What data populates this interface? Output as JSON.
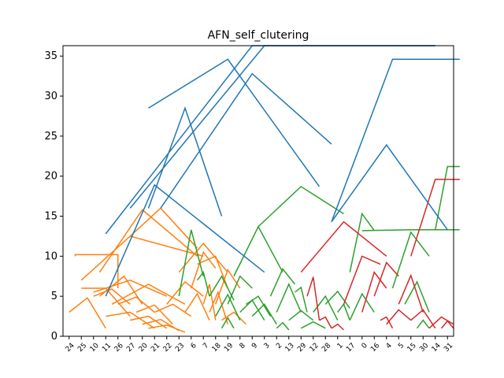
{
  "chart_data": {
    "type": "dendrogram",
    "title": "AFN_self_clutering",
    "xlabel": "",
    "ylabel": "",
    "ylim": [
      0,
      36.3
    ],
    "yticks": [
      0,
      5,
      10,
      15,
      20,
      25,
      30,
      35
    ],
    "leaves": [
      "24",
      "25",
      "10",
      "11",
      "26",
      "27",
      "20",
      "21",
      "22",
      "23",
      "6",
      "7",
      "18",
      "19",
      "8",
      "9",
      "3",
      "2",
      "13",
      "29",
      "12",
      "28",
      "1",
      "17",
      "0",
      "16",
      "4",
      "5",
      "15",
      "30",
      "14",
      "31"
    ],
    "grid": false,
    "colors": {
      "orange": "#ff7f0e",
      "green": "#2ca02c",
      "red": "#d62728",
      "blue": "#1f77b4"
    },
    "links": [
      {
        "x": [
          0.0,
          1.5,
          1.5,
          3.0
        ],
        "y": [
          3.0,
          4.8,
          4.8,
          1.0
        ],
        "color": "orange"
      },
      {
        "x": [
          0.5,
          0.5,
          4.0,
          4.0
        ],
        "y": [
          10.0,
          10.2,
          10.2,
          6.0
        ],
        "color": "orange"
      },
      {
        "x": [
          1.0,
          3.0,
          3.0,
          5.0
        ],
        "y": [
          6.0,
          6.0,
          6.0,
          2.5
        ],
        "color": "orange"
      },
      {
        "x": [
          2.0,
          3.5,
          3.5,
          5.0
        ],
        "y": [
          5.0,
          5.9,
          5.9,
          4.0
        ],
        "color": "orange"
      },
      {
        "x": [
          2.5,
          4.5,
          4.5,
          6.0
        ],
        "y": [
          5.0,
          7.5,
          7.5,
          4.0
        ],
        "color": "orange"
      },
      {
        "x": [
          3.0,
          5.0,
          5.0,
          7.0
        ],
        "y": [
          2.5,
          3.0,
          3.0,
          1.0
        ],
        "color": "orange"
      },
      {
        "x": [
          4.0,
          5.5,
          5.5,
          7.0
        ],
        "y": [
          4.0,
          4.9,
          4.9,
          3.0
        ],
        "color": "orange"
      },
      {
        "x": [
          5.0,
          6.5,
          6.5,
          8.0
        ],
        "y": [
          2.0,
          2.5,
          2.5,
          1.0
        ],
        "color": "orange"
      },
      {
        "x": [
          5.5,
          7.0,
          7.0,
          8.5
        ],
        "y": [
          3.0,
          3.9,
          3.9,
          1.5
        ],
        "color": "orange"
      },
      {
        "x": [
          6.0,
          7.5,
          7.5,
          9.0
        ],
        "y": [
          1.5,
          2.1,
          2.1,
          0.7
        ],
        "color": "orange"
      },
      {
        "x": [
          6.5,
          8.0,
          8.0,
          9.5
        ],
        "y": [
          1.0,
          1.4,
          1.4,
          0.5
        ],
        "color": "orange"
      },
      {
        "x": [
          7.0,
          8.5,
          8.5,
          10.0
        ],
        "y": [
          3.0,
          4.0,
          4.0,
          2.5
        ],
        "color": "orange"
      },
      {
        "x": [
          3.5,
          6.5,
          6.5,
          9.5
        ],
        "y": [
          4.0,
          6.5,
          6.5,
          4.0
        ],
        "color": "orange"
      },
      {
        "x": [
          2.0,
          5.0,
          5.0,
          8.0
        ],
        "y": [
          5.5,
          7.0,
          7.0,
          5.0
        ],
        "color": "orange"
      },
      {
        "x": [
          8.0,
          9.5,
          9.5,
          11.0
        ],
        "y": [
          4.0,
          6.8,
          6.8,
          5.0
        ],
        "color": "orange"
      },
      {
        "x": [
          9.5,
          10.5,
          10.5,
          11.5
        ],
        "y": [
          3.0,
          5.3,
          5.3,
          2.0
        ],
        "color": "orange"
      },
      {
        "x": [
          10.0,
          11.0,
          11.0,
          12.0
        ],
        "y": [
          6.0,
          10.5,
          10.5,
          8.5
        ],
        "color": "orange"
      },
      {
        "x": [
          11.0,
          11.5,
          11.5,
          12.0
        ],
        "y": [
          4.0,
          6.5,
          6.5,
          2.0
        ],
        "color": "orange"
      },
      {
        "x": [
          10.5,
          12.0,
          12.0,
          13.0
        ],
        "y": [
          9.0,
          10.0,
          10.0,
          6.0
        ],
        "color": "orange"
      },
      {
        "x": [
          11.5,
          12.2,
          12.2,
          13.0
        ],
        "y": [
          3.0,
          5.5,
          5.5,
          1.5
        ],
        "color": "orange"
      },
      {
        "x": [
          9.0,
          11.0,
          11.0,
          13.0
        ],
        "y": [
          8.0,
          11.6,
          11.6,
          8.0
        ],
        "color": "orange"
      },
      {
        "x": [
          12.0,
          13.0,
          13.0,
          14.0
        ],
        "y": [
          4.0,
          8.3,
          8.3,
          6.0
        ],
        "color": "orange"
      },
      {
        "x": [
          12.5,
          13.5,
          13.5,
          14.5
        ],
        "y": [
          2.0,
          3.0,
          3.0,
          1.5
        ],
        "color": "orange"
      },
      {
        "x": [
          1.0,
          5.0,
          5.0,
          11.0
        ],
        "y": [
          7.0,
          12.5,
          12.5,
          10.0
        ],
        "color": "orange"
      },
      {
        "x": [
          2.5,
          6.0,
          6.0,
          10.5
        ],
        "y": [
          8.0,
          15.8,
          15.8,
          10.0
        ],
        "color": "orange"
      },
      {
        "x": [
          5.0,
          7.5,
          7.5,
          10.5
        ],
        "y": [
          12.5,
          16.0,
          16.0,
          11.0
        ],
        "color": "orange"
      },
      {
        "x": [
          9.0,
          10.0,
          10.0,
          11.0
        ],
        "y": [
          5.0,
          13.3,
          13.3,
          7.5
        ],
        "color": "green"
      },
      {
        "x": [
          10.5,
          11.0,
          11.0,
          11.5
        ],
        "y": [
          7.0,
          8.0,
          8.0,
          5.0
        ],
        "color": "green"
      },
      {
        "x": [
          11.5,
          12.5,
          12.5,
          13.5
        ],
        "y": [
          5.0,
          7.5,
          7.5,
          4.5
        ],
        "color": "green"
      },
      {
        "x": [
          12.0,
          13.0,
          13.0,
          14.0
        ],
        "y": [
          2.5,
          5.2,
          5.2,
          2.0
        ],
        "color": "green"
      },
      {
        "x": [
          12.5,
          13.0,
          13.0,
          13.5
        ],
        "y": [
          1.0,
          2.3,
          2.3,
          1.0
        ],
        "color": "green"
      },
      {
        "x": [
          13.0,
          14.0,
          14.0,
          15.0
        ],
        "y": [
          4.0,
          7.5,
          7.5,
          6.0
        ],
        "color": "green"
      },
      {
        "x": [
          14.0,
          15.0,
          15.0,
          16.0
        ],
        "y": [
          3.0,
          4.5,
          4.5,
          2.0
        ],
        "color": "green"
      },
      {
        "x": [
          14.5,
          15.5,
          15.5,
          16.5
        ],
        "y": [
          4.0,
          5.0,
          5.0,
          2.5
        ],
        "color": "green"
      },
      {
        "x": [
          15.0,
          16.0,
          16.0,
          17.0
        ],
        "y": [
          2.5,
          4.0,
          4.0,
          1.5
        ],
        "color": "green"
      },
      {
        "x": [
          13.5,
          15.5,
          15.5,
          17.5
        ],
        "y": [
          7.5,
          13.7,
          13.7,
          8.0
        ],
        "color": "green"
      },
      {
        "x": [
          16.5,
          17.5,
          17.5,
          18.5
        ],
        "y": [
          5.0,
          8.4,
          8.4,
          6.5
        ],
        "color": "green"
      },
      {
        "x": [
          17.0,
          17.5,
          17.5,
          18.0
        ],
        "y": [
          1.0,
          1.7,
          1.7,
          0.8
        ],
        "color": "green"
      },
      {
        "x": [
          17.0,
          18.0,
          18.0,
          19.0
        ],
        "y": [
          3.0,
          6.5,
          6.5,
          3.0
        ],
        "color": "green"
      },
      {
        "x": [
          18.0,
          19.0,
          19.0,
          20.0
        ],
        "y": [
          2.0,
          3.2,
          3.2,
          2.0
        ],
        "color": "green"
      },
      {
        "x": [
          18.5,
          19.0,
          19.0,
          19.5
        ],
        "y": [
          5.5,
          6.1,
          6.1,
          3.0
        ],
        "color": "green"
      },
      {
        "x": [
          19.0,
          20.0,
          20.0,
          21.0
        ],
        "y": [
          1.0,
          1.8,
          1.8,
          1.0
        ],
        "color": "green"
      },
      {
        "x": [
          20.0,
          21.0,
          21.0,
          22.0
        ],
        "y": [
          3.0,
          5.0,
          5.0,
          2.0
        ],
        "color": "green"
      },
      {
        "x": [
          21.0,
          22.0,
          22.0,
          23.0
        ],
        "y": [
          4.0,
          5.6,
          5.6,
          3.5
        ],
        "color": "green"
      },
      {
        "x": [
          22.0,
          22.5,
          22.5,
          23.0
        ],
        "y": [
          3.0,
          4.0,
          4.0,
          2.0
        ],
        "color": "green"
      },
      {
        "x": [
          23.0,
          24.0,
          24.0,
          25.0
        ],
        "y": [
          2.0,
          5.3,
          5.3,
          3.0
        ],
        "color": "green"
      },
      {
        "x": [
          23.0,
          24.0,
          24.0,
          25.0
        ],
        "y": [
          8.0,
          15.3,
          15.3,
          13.2
        ],
        "color": "green"
      },
      {
        "x": [
          15.5,
          19.0,
          19.0,
          22.5
        ],
        "y": [
          13.7,
          18.7,
          18.7,
          15.3
        ],
        "color": "green"
      },
      {
        "x": [
          27.5,
          28.5,
          28.5,
          29.5
        ],
        "y": [
          4.0,
          6.8,
          6.8,
          3.0
        ],
        "color": "green"
      },
      {
        "x": [
          28.5,
          29.0,
          29.0,
          29.5
        ],
        "y": [
          1.0,
          2.0,
          2.0,
          1.0
        ],
        "color": "green"
      },
      {
        "x": [
          26.5,
          28.0,
          28.0,
          29.5
        ],
        "y": [
          6.0,
          13.0,
          13.0,
          10.0
        ],
        "color": "green"
      },
      {
        "x": [
          24.0,
          28.0,
          28.0,
          32.0
        ],
        "y": [
          13.2,
          13.3,
          13.3,
          13.3
        ],
        "color": "green"
      },
      {
        "x": [
          30.0,
          31.0,
          31.0,
          32.0
        ],
        "y": [
          13.3,
          21.2,
          21.2,
          21.2
        ],
        "color": "green"
      },
      {
        "x": [
          19.5,
          20.0,
          20.0,
          20.5
        ],
        "y": [
          5.0,
          7.4,
          7.4,
          2.0
        ],
        "color": "red"
      },
      {
        "x": [
          20.5,
          21.0,
          21.0,
          21.5
        ],
        "y": [
          2.0,
          2.4,
          2.4,
          1.0
        ],
        "color": "red"
      },
      {
        "x": [
          21.5,
          22.0,
          22.0,
          22.5
        ],
        "y": [
          1.0,
          1.5,
          1.5,
          0.8
        ],
        "color": "red"
      },
      {
        "x": [
          19.0,
          22.5,
          22.5,
          26.0
        ],
        "y": [
          8.0,
          14.3,
          14.3,
          10.0
        ],
        "color": "red"
      },
      {
        "x": [
          22.5,
          24.0,
          24.0,
          25.5
        ],
        "y": [
          4.0,
          10.0,
          10.0,
          9.0
        ],
        "color": "red"
      },
      {
        "x": [
          24.0,
          25.0,
          25.0,
          26.0
        ],
        "y": [
          3.0,
          8.0,
          8.0,
          6.0
        ],
        "color": "red"
      },
      {
        "x": [
          25.0,
          26.0,
          26.0,
          27.0
        ],
        "y": [
          5.0,
          9.2,
          9.2,
          7.5
        ],
        "color": "red"
      },
      {
        "x": [
          25.5,
          26.0,
          26.0,
          26.5
        ],
        "y": [
          2.0,
          2.4,
          2.4,
          1.0
        ],
        "color": "red"
      },
      {
        "x": [
          26.0,
          27.0,
          27.0,
          28.0
        ],
        "y": [
          1.5,
          3.3,
          3.3,
          2.0
        ],
        "color": "red"
      },
      {
        "x": [
          27.0,
          28.0,
          28.0,
          29.0
        ],
        "y": [
          4.0,
          7.6,
          7.6,
          3.0
        ],
        "color": "red"
      },
      {
        "x": [
          28.0,
          29.0,
          29.0,
          30.0
        ],
        "y": [
          2.0,
          3.3,
          3.3,
          1.0
        ],
        "color": "red"
      },
      {
        "x": [
          29.5,
          30.5,
          30.5,
          31.5
        ],
        "y": [
          1.0,
          2.4,
          2.4,
          1.5
        ],
        "color": "red"
      },
      {
        "x": [
          30.5,
          31.0,
          31.0,
          31.5
        ],
        "y": [
          1.0,
          1.9,
          1.9,
          1.0
        ],
        "color": "red"
      },
      {
        "x": [
          28.0,
          30.0,
          30.0,
          32.0
        ],
        "y": [
          10.0,
          19.6,
          19.6,
          19.6
        ],
        "color": "red"
      },
      {
        "x": [
          6.5,
          9.5,
          9.5,
          12.5
        ],
        "y": [
          16.0,
          28.5,
          28.5,
          15.0
        ],
        "color": "blue"
      },
      {
        "x": [
          3.0,
          7.0,
          7.0,
          16.0
        ],
        "y": [
          5.0,
          18.9,
          18.9,
          8.0
        ],
        "color": "blue"
      },
      {
        "x": [
          7.5,
          15.0,
          15.0,
          21.5
        ],
        "y": [
          16.0,
          32.8,
          32.8,
          24.0
        ],
        "color": "blue"
      },
      {
        "x": [
          21.5,
          26.0,
          26.0,
          31.0
        ],
        "y": [
          14.3,
          23.9,
          23.9,
          13.3
        ],
        "color": "blue"
      },
      {
        "x": [
          6.5,
          13.0,
          13.0,
          20.5
        ],
        "y": [
          28.5,
          34.6,
          34.6,
          18.7
        ],
        "color": "blue"
      },
      {
        "x": [
          21.5,
          26.5,
          26.5,
          32.0
        ],
        "y": [
          14.3,
          34.6,
          34.6,
          34.6
        ],
        "color": "blue"
      },
      {
        "x": [
          5.0,
          16.0,
          16.0,
          30.0
        ],
        "y": [
          16.0,
          36.3,
          36.3,
          36.3
        ],
        "color": "blue"
      },
      {
        "x": [
          3.0,
          15.0,
          15.0,
          30.0
        ],
        "y": [
          12.8,
          36.3,
          36.3,
          36.3
        ],
        "color": "blue"
      }
    ]
  }
}
